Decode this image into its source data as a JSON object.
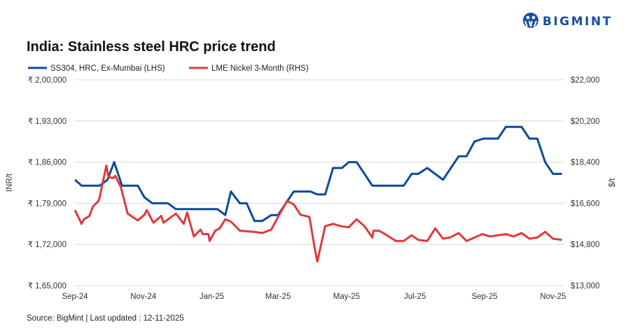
{
  "brand": {
    "name": "BIGMINT",
    "color": "#1a4fa0"
  },
  "chart_data": {
    "type": "line",
    "title": "India: Stainless steel HRC price trend",
    "source": "Source: BigMint | Last updated : 12-11-2025",
    "x_ticks": [
      "Sep-24",
      "Nov-24",
      "Jan-25",
      "Mar-25",
      "May-25",
      "Jul-25",
      "Sep-25",
      "Nov-25"
    ],
    "y_left": {
      "label": "INR/t",
      "range": [
        165000,
        200000
      ],
      "ticks": [
        "₹ 1,65,000",
        "₹ 1,72,000",
        "₹ 1,79,000",
        "₹ 1,86,000",
        "₹ 1,93,000",
        "₹ 2,00,000"
      ]
    },
    "y_right": {
      "label": "$/t",
      "range": [
        13000,
        22000
      ],
      "ticks": [
        "$13,000",
        "$14,800",
        "$16,600",
        "$18,400",
        "$20,200",
        "$22,000"
      ]
    },
    "grid": true,
    "legend_position": "top-left",
    "series": [
      {
        "name": "SS304, HRC, Ex-Mumbai (LHS)",
        "axis": "left",
        "color": "#0b4a9c",
        "points": [
          [
            "2024-09-01",
            183000
          ],
          [
            "2024-09-07",
            182000
          ],
          [
            "2024-09-23",
            182000
          ],
          [
            "2024-09-30",
            183000
          ],
          [
            "2024-10-06",
            186000
          ],
          [
            "2024-10-13",
            182000
          ],
          [
            "2024-10-27",
            182000
          ],
          [
            "2024-11-02",
            180000
          ],
          [
            "2024-11-09",
            179000
          ],
          [
            "2024-11-23",
            179000
          ],
          [
            "2024-11-30",
            178000
          ],
          [
            "2025-01-06",
            178000
          ],
          [
            "2025-01-13",
            177000
          ],
          [
            "2025-01-18",
            181000
          ],
          [
            "2025-01-26",
            179000
          ],
          [
            "2025-02-01",
            179000
          ],
          [
            "2025-02-08",
            176000
          ],
          [
            "2025-02-15",
            176000
          ],
          [
            "2025-02-23",
            177000
          ],
          [
            "2025-03-01",
            177000
          ],
          [
            "2025-03-15",
            181000
          ],
          [
            "2025-03-30",
            181000
          ],
          [
            "2025-04-05",
            180500
          ],
          [
            "2025-04-12",
            180500
          ],
          [
            "2025-04-19",
            185000
          ],
          [
            "2025-04-27",
            185000
          ],
          [
            "2025-05-03",
            186000
          ],
          [
            "2025-05-10",
            186000
          ],
          [
            "2025-05-24",
            182000
          ],
          [
            "2025-06-21",
            182000
          ],
          [
            "2025-06-28",
            184000
          ],
          [
            "2025-07-04",
            184000
          ],
          [
            "2025-07-12",
            185000
          ],
          [
            "2025-07-26",
            183000
          ],
          [
            "2025-08-09",
            187000
          ],
          [
            "2025-08-16",
            187000
          ],
          [
            "2025-08-23",
            189500
          ],
          [
            "2025-08-31",
            190000
          ],
          [
            "2025-09-13",
            190000
          ],
          [
            "2025-09-20",
            192000
          ],
          [
            "2025-10-04",
            192000
          ],
          [
            "2025-10-11",
            190000
          ],
          [
            "2025-10-18",
            190000
          ],
          [
            "2025-10-25",
            186000
          ],
          [
            "2025-11-01",
            184000
          ],
          [
            "2025-11-09",
            184000
          ]
        ]
      },
      {
        "name": "LME Nickel 3-Month (RHS)",
        "axis": "right",
        "color": "#e0393a",
        "points": [
          [
            "2024-09-01",
            16300
          ],
          [
            "2024-09-07",
            15700
          ],
          [
            "2024-09-09",
            15900
          ],
          [
            "2024-09-14",
            16050
          ],
          [
            "2024-09-17",
            16450
          ],
          [
            "2024-09-22",
            16700
          ],
          [
            "2024-09-23",
            16850
          ],
          [
            "2024-09-29",
            18250
          ],
          [
            "2024-10-01",
            17750
          ],
          [
            "2024-10-05",
            17700
          ],
          [
            "2024-10-07",
            17800
          ],
          [
            "2024-10-12",
            17300
          ],
          [
            "2024-10-18",
            16150
          ],
          [
            "2024-10-27",
            15850
          ],
          [
            "2024-11-02",
            16100
          ],
          [
            "2024-11-04",
            16300
          ],
          [
            "2024-11-10",
            15750
          ],
          [
            "2024-11-17",
            16050
          ],
          [
            "2024-11-19",
            15750
          ],
          [
            "2024-11-30",
            16150
          ],
          [
            "2024-12-07",
            15700
          ],
          [
            "2024-12-10",
            16200
          ],
          [
            "2024-12-16",
            15150
          ],
          [
            "2024-12-22",
            15450
          ],
          [
            "2024-12-24",
            15250
          ],
          [
            "2024-12-29",
            15250
          ],
          [
            "2024-12-30",
            14950
          ],
          [
            "2025-01-04",
            15400
          ],
          [
            "2025-01-08",
            15500
          ],
          [
            "2025-01-13",
            15900
          ],
          [
            "2025-01-18",
            15800
          ],
          [
            "2025-01-26",
            15400
          ],
          [
            "2025-02-08",
            15350
          ],
          [
            "2025-02-15",
            15300
          ],
          [
            "2025-02-23",
            15450
          ],
          [
            "2025-03-01",
            16000
          ],
          [
            "2025-03-09",
            16700
          ],
          [
            "2025-03-15",
            16550
          ],
          [
            "2025-03-21",
            16100
          ],
          [
            "2025-03-29",
            16000
          ],
          [
            "2025-04-03",
            14550
          ],
          [
            "2025-04-05",
            14050
          ],
          [
            "2025-04-12",
            15600
          ],
          [
            "2025-04-19",
            15700
          ],
          [
            "2025-04-26",
            15600
          ],
          [
            "2025-05-03",
            15550
          ],
          [
            "2025-05-10",
            15900
          ],
          [
            "2025-05-17",
            15600
          ],
          [
            "2025-05-24",
            15100
          ],
          [
            "2025-05-25",
            15400
          ],
          [
            "2025-05-30",
            15400
          ],
          [
            "2025-06-06",
            15200
          ],
          [
            "2025-06-14",
            14950
          ],
          [
            "2025-06-21",
            14950
          ],
          [
            "2025-06-28",
            15200
          ],
          [
            "2025-07-04",
            15000
          ],
          [
            "2025-07-12",
            14950
          ],
          [
            "2025-07-19",
            15500
          ],
          [
            "2025-07-26",
            15050
          ],
          [
            "2025-08-01",
            15100
          ],
          [
            "2025-08-09",
            15300
          ],
          [
            "2025-08-16",
            14950
          ],
          [
            "2025-08-23",
            15100
          ],
          [
            "2025-08-30",
            15250
          ],
          [
            "2025-09-06",
            15150
          ],
          [
            "2025-09-13",
            15200
          ],
          [
            "2025-09-20",
            15250
          ],
          [
            "2025-09-27",
            15150
          ],
          [
            "2025-10-04",
            15300
          ],
          [
            "2025-10-11",
            15050
          ],
          [
            "2025-10-18",
            15100
          ],
          [
            "2025-10-25",
            15350
          ],
          [
            "2025-11-01",
            15050
          ],
          [
            "2025-11-09",
            15000
          ]
        ]
      }
    ]
  }
}
